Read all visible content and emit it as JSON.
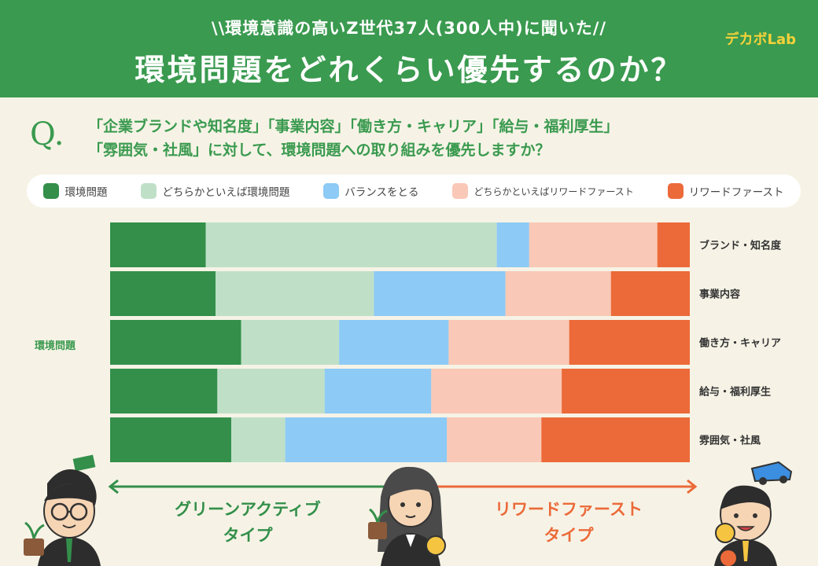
{
  "header": {
    "sub": "\\\\環境意識の高いZ世代37人(300人中)に聞いた//",
    "title": "環境問題をどれくらい優先するのか？",
    "logo": "デカボLab"
  },
  "question": {
    "mark": "Q.",
    "line1": "「企業ブランドや知名度」「事業内容」「働き方・キャリア」「給与・福利厚生」",
    "line2": "「雰囲気・社風」に対して、環境問題への取り組みを優先しますか？"
  },
  "side_label": "環境問題",
  "left_type": {
    "line1": "グリーンアクティブ",
    "line2": "タイプ"
  },
  "right_type": {
    "line1": "リワードファースト",
    "line2": "タイプ"
  },
  "colors": {
    "green_dark": "#338f4a",
    "green_light": "#bfe0c7",
    "blue": "#8dcaf5",
    "pink": "#f9c8b6",
    "orange": "#ec6a39"
  },
  "chart_data": {
    "type": "bar",
    "stacked": true,
    "orientation": "horizontal",
    "unit": "%",
    "legend_position": "top",
    "series": [
      {
        "name": "環境問題",
        "color": "#338f4a"
      },
      {
        "name": "どちらかといえば環境問題",
        "color": "#bfe0c7"
      },
      {
        "name": "バランスをとる",
        "color": "#8dcaf5"
      },
      {
        "name": "どちらかといえばリワードファースト",
        "color": "#f9c8b6"
      },
      {
        "name": "リワードファースト",
        "color": "#ec6a39"
      }
    ],
    "categories": [
      "ブランド・知名度",
      "事業内容",
      "働き方・キャリア",
      "給与・福利厚生",
      "雰囲気・社風"
    ],
    "values": [
      [
        16.5,
        50.2,
        5.6,
        22.1,
        5.6
      ],
      [
        18.2,
        27.3,
        22.7,
        18.2,
        13.6
      ],
      [
        22.6,
        16.9,
        18.9,
        20.8,
        20.8
      ],
      [
        18.5,
        18.5,
        18.4,
        22.5,
        22.1
      ],
      [
        20.9,
        9.3,
        27.9,
        16.3,
        25.6
      ]
    ]
  }
}
